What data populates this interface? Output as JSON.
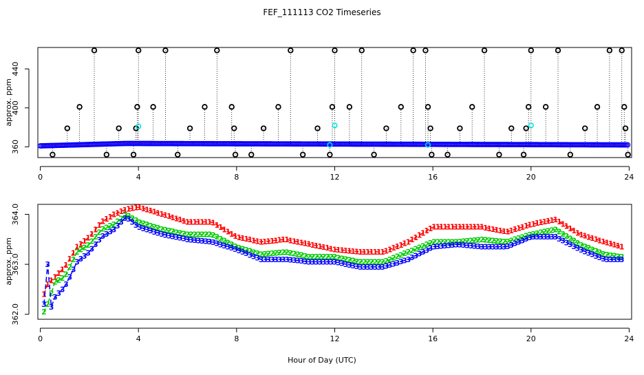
{
  "chart_data": [
    {
      "type": "scatter",
      "title": "FEF_111113  CO2 Timeseries",
      "xlabel": "",
      "ylabel": "approx. ppm",
      "xlim": [
        -0.1,
        24.1
      ],
      "ylim": [
        349,
        462
      ],
      "xticks": [
        0,
        4,
        8,
        12,
        16,
        20,
        24
      ],
      "yticks": [
        360,
        400,
        440
      ],
      "colors": {
        "baseline": "#0000ff",
        "spike": "#000000",
        "reference": "#00e5e5",
        "trace": "#ff0000"
      },
      "baseline": {
        "start": 361,
        "end": 362,
        "peak_hour": 3.5,
        "peak": 363.5,
        "interval_hours": 0.06
      },
      "spikes": [
        {
          "x": 0.5,
          "y": 352
        },
        {
          "x": 1.1,
          "y": 379
        },
        {
          "x": 1.6,
          "y": 401
        },
        {
          "x": 2.2,
          "y": 459
        },
        {
          "x": 2.7,
          "y": 352
        },
        {
          "x": 3.2,
          "y": 379
        },
        {
          "x": 3.8,
          "y": 352
        },
        {
          "x": 3.9,
          "y": 379
        },
        {
          "x": 3.95,
          "y": 401
        },
        {
          "x": 4.0,
          "y": 459
        },
        {
          "x": 4.6,
          "y": 401
        },
        {
          "x": 5.1,
          "y": 459
        },
        {
          "x": 5.6,
          "y": 352
        },
        {
          "x": 6.1,
          "y": 379
        },
        {
          "x": 6.7,
          "y": 401
        },
        {
          "x": 7.2,
          "y": 459
        },
        {
          "x": 7.8,
          "y": 401
        },
        {
          "x": 7.9,
          "y": 379
        },
        {
          "x": 7.95,
          "y": 352
        },
        {
          "x": 8.6,
          "y": 352
        },
        {
          "x": 9.1,
          "y": 379
        },
        {
          "x": 9.7,
          "y": 401
        },
        {
          "x": 10.2,
          "y": 459
        },
        {
          "x": 10.7,
          "y": 352
        },
        {
          "x": 11.3,
          "y": 379
        },
        {
          "x": 11.8,
          "y": 352
        },
        {
          "x": 11.9,
          "y": 401
        },
        {
          "x": 12.0,
          "y": 459
        },
        {
          "x": 12.6,
          "y": 401
        },
        {
          "x": 13.1,
          "y": 459
        },
        {
          "x": 13.6,
          "y": 352
        },
        {
          "x": 14.1,
          "y": 379
        },
        {
          "x": 14.7,
          "y": 401
        },
        {
          "x": 15.2,
          "y": 459
        },
        {
          "x": 15.7,
          "y": 459
        },
        {
          "x": 15.8,
          "y": 401
        },
        {
          "x": 15.9,
          "y": 379
        },
        {
          "x": 15.95,
          "y": 352
        },
        {
          "x": 16.6,
          "y": 352
        },
        {
          "x": 17.1,
          "y": 379
        },
        {
          "x": 17.6,
          "y": 401
        },
        {
          "x": 18.1,
          "y": 459
        },
        {
          "x": 18.7,
          "y": 352
        },
        {
          "x": 19.2,
          "y": 379
        },
        {
          "x": 19.7,
          "y": 352
        },
        {
          "x": 19.8,
          "y": 379
        },
        {
          "x": 19.9,
          "y": 401
        },
        {
          "x": 20.0,
          "y": 459
        },
        {
          "x": 20.6,
          "y": 401
        },
        {
          "x": 21.1,
          "y": 459
        },
        {
          "x": 21.6,
          "y": 352
        },
        {
          "x": 22.2,
          "y": 379
        },
        {
          "x": 22.7,
          "y": 401
        },
        {
          "x": 23.2,
          "y": 459
        },
        {
          "x": 23.7,
          "y": 459
        },
        {
          "x": 23.8,
          "y": 401
        },
        {
          "x": 23.85,
          "y": 379
        },
        {
          "x": 23.95,
          "y": 352
        }
      ],
      "reference_points": [
        {
          "x": 4.0,
          "y": 381
        },
        {
          "x": 11.8,
          "y": 362
        },
        {
          "x": 12.0,
          "y": 382
        },
        {
          "x": 20.0,
          "y": 382
        },
        {
          "x": 15.8,
          "y": 362
        }
      ]
    },
    {
      "type": "line",
      "title": "",
      "xlabel": "Hour of Day (UTC)",
      "ylabel": "approx. ppm",
      "xlim": [
        -0.1,
        24.1
      ],
      "ylim": [
        361.9,
        364.2
      ],
      "xticks": [
        0,
        4,
        8,
        12,
        16,
        20,
        24
      ],
      "yticks": [
        362.0,
        363.0,
        364.0
      ],
      "ytick_labels": [
        "362.0",
        "363.0",
        "364.0"
      ],
      "interval_hours": 0.15,
      "series": [
        {
          "name": "1",
          "marker": "1",
          "color": "#ff0000",
          "dash": "6,4",
          "points": [
            [
              0.15,
              362.4
            ],
            [
              0.3,
              362.6
            ],
            [
              0.6,
              362.75
            ],
            [
              1.0,
              362.95
            ],
            [
              1.5,
              363.35
            ],
            [
              2.0,
              363.55
            ],
            [
              2.5,
              363.85
            ],
            [
              3.0,
              364.0
            ],
            [
              3.5,
              364.1
            ],
            [
              4.0,
              364.15
            ],
            [
              5.0,
              364.0
            ],
            [
              6.0,
              363.85
            ],
            [
              7.0,
              363.85
            ],
            [
              8.0,
              363.55
            ],
            [
              9.0,
              363.45
            ],
            [
              10.0,
              363.5
            ],
            [
              11.0,
              363.4
            ],
            [
              12.0,
              363.3
            ],
            [
              13.0,
              363.25
            ],
            [
              14.0,
              363.25
            ],
            [
              15.0,
              363.45
            ],
            [
              16.0,
              363.75
            ],
            [
              17.0,
              363.75
            ],
            [
              18.0,
              363.75
            ],
            [
              19.0,
              363.65
            ],
            [
              20.0,
              363.8
            ],
            [
              21.0,
              363.9
            ],
            [
              22.0,
              363.6
            ],
            [
              23.0,
              363.45
            ],
            [
              23.7,
              363.35
            ]
          ]
        },
        {
          "name": "2",
          "marker": "2",
          "color": "#00cc00",
          "dash": "5,3",
          "points": [
            [
              0.15,
              362.05
            ],
            [
              0.3,
              362.2
            ],
            [
              0.6,
              362.65
            ],
            [
              1.0,
              362.75
            ],
            [
              1.5,
              363.25
            ],
            [
              2.0,
              363.4
            ],
            [
              2.5,
              363.7
            ],
            [
              3.0,
              363.8
            ],
            [
              3.5,
              364.0
            ],
            [
              4.0,
              363.85
            ],
            [
              5.0,
              363.7
            ],
            [
              6.0,
              363.6
            ],
            [
              7.0,
              363.6
            ],
            [
              8.0,
              363.35
            ],
            [
              9.0,
              363.2
            ],
            [
              10.0,
              363.25
            ],
            [
              11.0,
              363.15
            ],
            [
              12.0,
              363.15
            ],
            [
              13.0,
              363.05
            ],
            [
              14.0,
              363.05
            ],
            [
              15.0,
              363.25
            ],
            [
              16.0,
              363.45
            ],
            [
              17.0,
              363.45
            ],
            [
              18.0,
              363.5
            ],
            [
              19.0,
              363.45
            ],
            [
              20.0,
              363.6
            ],
            [
              21.0,
              363.7
            ],
            [
              22.0,
              363.4
            ],
            [
              23.0,
              363.2
            ],
            [
              23.7,
              363.15
            ]
          ]
        },
        {
          "name": "3",
          "marker": "3",
          "color": "#0000ff",
          "dash": "7,4",
          "points": [
            [
              0.15,
              362.2
            ],
            [
              0.3,
              363.0
            ],
            [
              0.45,
              362.15
            ],
            [
              0.6,
              362.35
            ],
            [
              1.0,
              362.55
            ],
            [
              1.5,
              363.05
            ],
            [
              2.0,
              363.25
            ],
            [
              2.5,
              363.55
            ],
            [
              3.0,
              363.7
            ],
            [
              3.5,
              363.95
            ],
            [
              4.0,
              363.75
            ],
            [
              5.0,
              363.6
            ],
            [
              6.0,
              363.5
            ],
            [
              7.0,
              363.45
            ],
            [
              8.0,
              363.3
            ],
            [
              9.0,
              363.1
            ],
            [
              10.0,
              363.1
            ],
            [
              11.0,
              363.05
            ],
            [
              12.0,
              363.05
            ],
            [
              13.0,
              362.95
            ],
            [
              14.0,
              362.95
            ],
            [
              15.0,
              363.1
            ],
            [
              16.0,
              363.35
            ],
            [
              17.0,
              363.4
            ],
            [
              18.0,
              363.35
            ],
            [
              19.0,
              363.35
            ],
            [
              20.0,
              363.55
            ],
            [
              21.0,
              363.55
            ],
            [
              22.0,
              363.3
            ],
            [
              23.0,
              363.1
            ],
            [
              23.7,
              363.1
            ]
          ]
        }
      ]
    }
  ]
}
